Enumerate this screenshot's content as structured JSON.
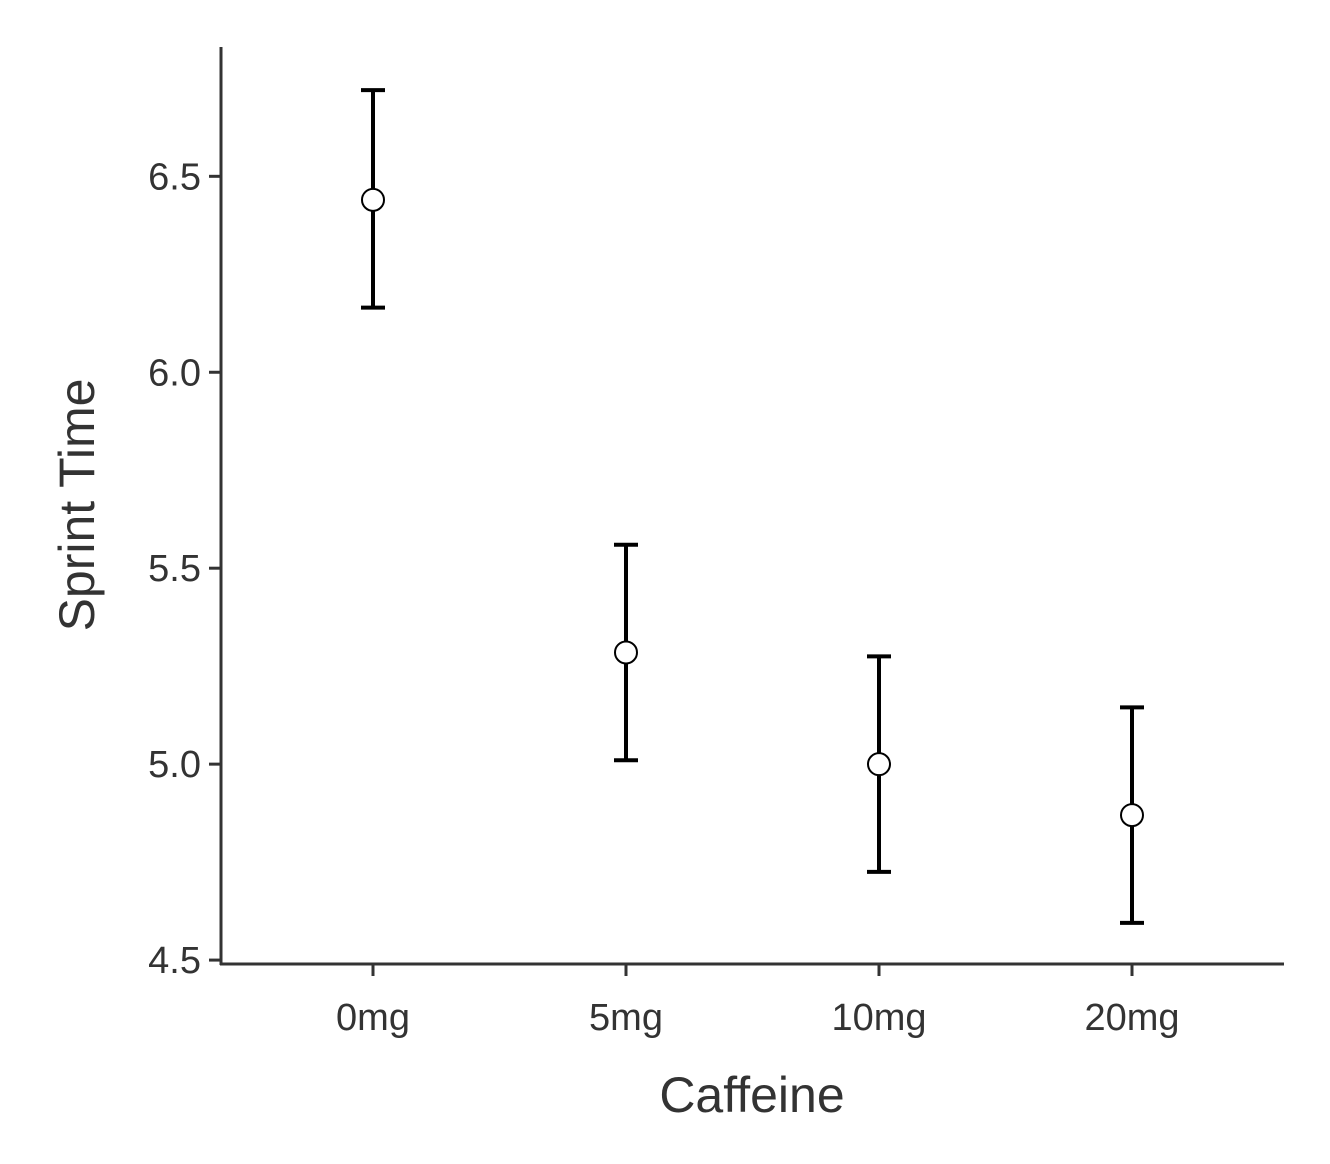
{
  "chart_data": {
    "type": "scatter",
    "title": "",
    "xlabel": "Caffeine",
    "ylabel": "Sprint Time",
    "categories": [
      "0mg",
      "5mg",
      "10mg",
      "20mg"
    ],
    "series": [
      {
        "values": [
          6.44,
          5.285,
          5.0,
          4.87
        ],
        "lower": [
          6.165,
          5.01,
          4.725,
          4.595
        ],
        "upper": [
          6.72,
          5.56,
          5.275,
          5.145
        ]
      }
    ],
    "yticks": [
      4.5,
      5.0,
      5.5,
      6.0,
      6.5
    ],
    "ytick_labels": [
      "4.5",
      "5.0",
      "5.5",
      "6.0",
      "6.5"
    ],
    "ylim": [
      4.49,
      6.83
    ],
    "grid": false,
    "legend": "none",
    "colors": {
      "axis": "#333333",
      "errorbar": "#000000",
      "marker_fill": "#ffffff",
      "marker_stroke": "#000000"
    }
  }
}
